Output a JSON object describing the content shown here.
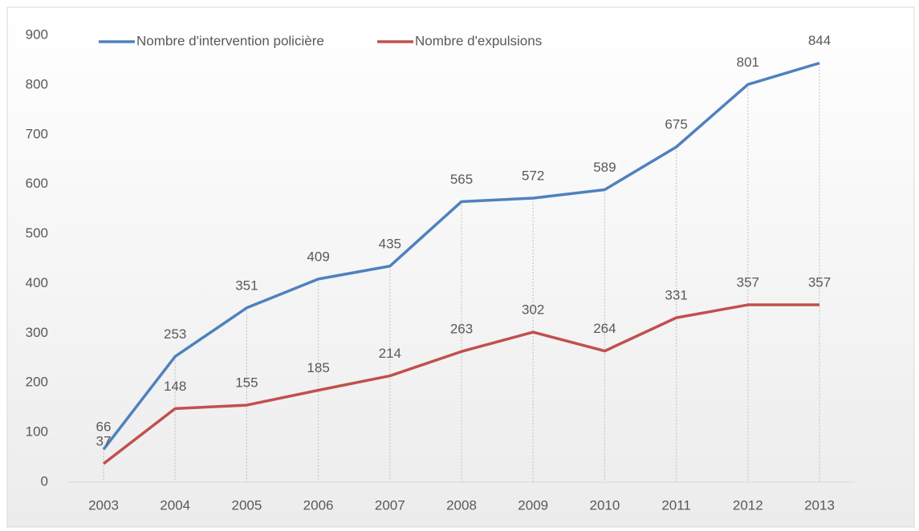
{
  "chart_data": {
    "type": "line",
    "categories": [
      "2003",
      "2004",
      "2005",
      "2006",
      "2007",
      "2008",
      "2009",
      "2010",
      "2011",
      "2012",
      "2013"
    ],
    "series": [
      {
        "name": "Nombre d'intervention policière",
        "color": "#4f81bd",
        "values": [
          66,
          253,
          351,
          409,
          435,
          565,
          572,
          589,
          675,
          801,
          844
        ]
      },
      {
        "name": "Nombre d'expulsions",
        "color": "#c0504d",
        "values": [
          37,
          148,
          155,
          185,
          214,
          263,
          302,
          264,
          331,
          357,
          357
        ]
      }
    ],
    "ylim": [
      0,
      900
    ],
    "yticks": [
      0,
      100,
      200,
      300,
      400,
      500,
      600,
      700,
      800,
      900
    ],
    "grid": false,
    "drop_lines": true,
    "legend": "top"
  }
}
